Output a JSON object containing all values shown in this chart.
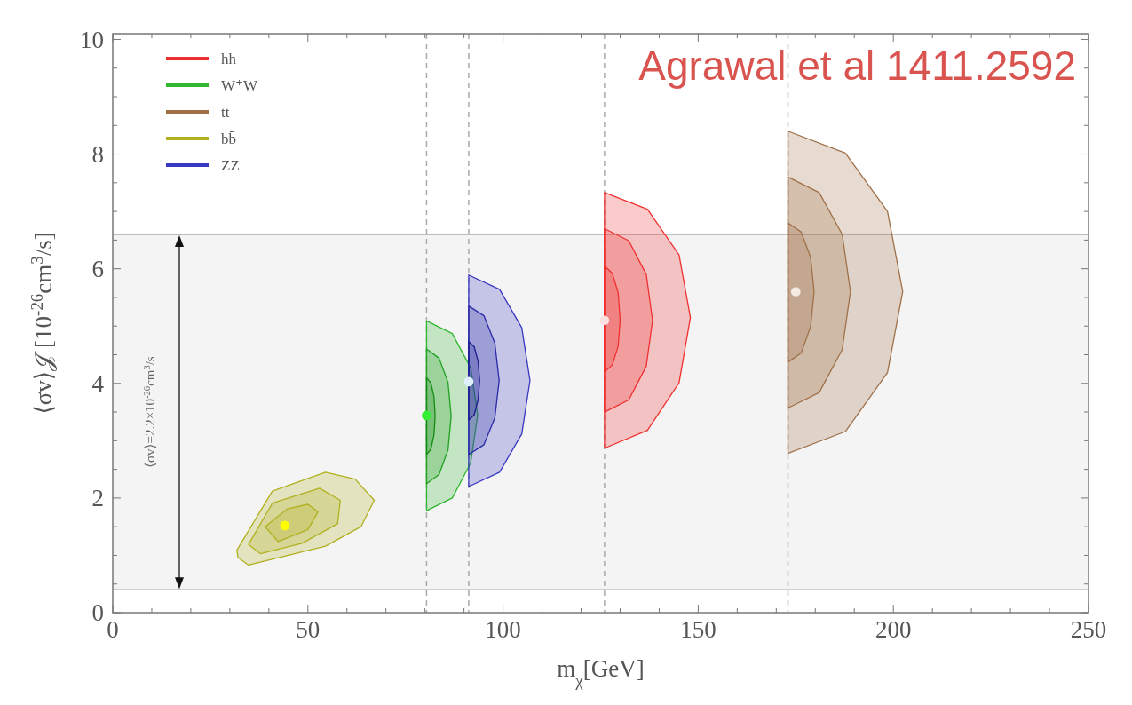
{
  "chart_data": {
    "type": "area",
    "xlabel": "m$_{χ}$[GeV]",
    "ylabel": "⟨σv⟩𝒥 [10$^{-26}$cm$^{3}$/s]",
    "annotations": [
      "Agrawal et al 1411.2592",
      "⟨σv⟩=2.2×10$^{-26}$cm$^{3}$/s"
    ],
    "xlim": [
      0,
      250
    ],
    "ylim": [
      0,
      10.1
    ],
    "xticks": [
      0,
      {
        "value": 10,
        "label": null
      },
      {
        "value": 20,
        "label": null
      },
      {
        "value": 30,
        "label": null
      },
      {
        "value": 40,
        "label": null
      },
      50,
      {
        "value": 60,
        "label": null
      },
      {
        "value": 70,
        "label": null
      },
      {
        "value": 80,
        "label": null
      },
      {
        "value": 90,
        "label": null
      },
      100,
      {
        "value": 110,
        "label": null
      },
      {
        "value": 120,
        "label": null
      },
      {
        "value": 130,
        "label": null
      },
      {
        "value": 140,
        "label": null
      },
      150,
      {
        "value": 160,
        "label": null
      },
      {
        "value": 170,
        "label": null
      },
      {
        "value": 180,
        "label": null
      },
      {
        "value": 190,
        "label": null
      },
      200,
      {
        "value": 210,
        "label": null
      },
      {
        "value": 220,
        "label": null
      },
      {
        "value": 230,
        "label": null
      },
      {
        "value": 240,
        "label": null
      },
      250
    ],
    "yticks": [
      0,
      {
        "value": 0.5,
        "label": null
      },
      {
        "value": 1,
        "label": null
      },
      {
        "value": 1.5,
        "label": null
      },
      2,
      {
        "value": 2.5,
        "label": null
      },
      {
        "value": 3,
        "label": null
      },
      {
        "value": 3.5,
        "label": null
      },
      4,
      {
        "value": 4.5,
        "label": null
      },
      {
        "value": 5,
        "label": null
      },
      {
        "value": 5.5,
        "label": null
      },
      6,
      {
        "value": 6.5,
        "label": null
      },
      {
        "value": 7,
        "label": null
      },
      {
        "value": 7.5,
        "label": null
      },
      8,
      {
        "value": 8.5,
        "label": null
      },
      {
        "value": 9,
        "label": null
      },
      {
        "value": 9.5,
        "label": null
      },
      10
    ],
    "legend": "top left",
    "bands": [
      {
        "axis": "y",
        "from": 0.4,
        "to": 6.6,
        "color": "#f4f4f4"
      }
    ],
    "ref_lines": [
      {
        "axis": "y",
        "value": 0.4,
        "color": "#aaaaaa"
      },
      {
        "axis": "y",
        "value": 6.6,
        "color": "#aaaaaa"
      },
      {
        "axis": "x",
        "value": 80.4,
        "color": "#aaaaaa",
        "line_style": "dashed"
      },
      {
        "axis": "x",
        "value": 91.2,
        "color": "#aaaaaa",
        "line_style": "dashed"
      },
      {
        "axis": "x",
        "value": 126,
        "color": "#aaaaaa",
        "line_style": "dashed"
      },
      {
        "axis": "x",
        "value": 173,
        "color": "#aaaaaa",
        "line_style": "dashed"
      }
    ],
    "series": [
      {
        "name": "hh",
        "color": "#f03030",
        "x": [
          126,
          137,
          145.1,
          148,
          145.1,
          137,
          126
        ],
        "values": [
          7.33,
          7.04,
          6.24,
          5.15,
          4.01,
          3.18,
          2.87
        ]
      },
      {
        "color": "#f03030",
        "x": [
          126,
          132.2,
          136.7,
          138.3,
          136.7,
          132.2,
          126
        ],
        "values": [
          6.7,
          6.49,
          5.9,
          5.1,
          4.3,
          3.71,
          3.5
        ]
      },
      {
        "color": "#f03030",
        "x": [
          126,
          128,
          129.5,
          130,
          129.5,
          128,
          126
        ],
        "values": [
          6.05,
          5.92,
          5.58,
          5.1,
          4.65,
          4.32,
          4.2
        ]
      },
      {
        "name": "W⁺W⁻",
        "color": "#30b830",
        "x": [
          80.4,
          87,
          91.7,
          93.5,
          91.7,
          87,
          80.4
        ],
        "values": [
          5.09,
          4.87,
          4.27,
          3.45,
          2.61,
          2.0,
          1.78
        ]
      },
      {
        "color": "#22a022",
        "x": [
          80.4,
          83.6,
          85.9,
          86.7,
          85.9,
          83.6,
          80.4
        ],
        "values": [
          4.6,
          4.44,
          4.02,
          3.43,
          2.84,
          2.41,
          2.25
        ]
      },
      {
        "color": "#148a14",
        "x": [
          80.4,
          81.5,
          82.3,
          82.6,
          82.3,
          81.5,
          80.4
        ],
        "values": [
          4.1,
          4.01,
          3.77,
          3.43,
          3.1,
          2.85,
          2.76
        ]
      },
      {
        "name": "tt̄",
        "color": "#a07048",
        "x": [
          173,
          187.7,
          198.5,
          202.4,
          198.5,
          187.7,
          173
        ],
        "values": [
          8.4,
          8.02,
          7.0,
          5.6,
          4.19,
          3.16,
          2.78
        ]
      },
      {
        "color": "#a07048",
        "x": [
          173,
          181,
          186.9,
          189,
          186.9,
          181,
          173
        ],
        "values": [
          7.6,
          7.33,
          6.6,
          5.6,
          4.59,
          3.84,
          3.57
        ]
      },
      {
        "color": "#a07048",
        "x": [
          173,
          176.4,
          178.8,
          179.7,
          178.8,
          176.4,
          173
        ],
        "values": [
          6.8,
          6.64,
          6.2,
          5.6,
          4.99,
          4.53,
          4.37
        ]
      },
      {
        "name": "bb̄",
        "color": "#b0b020",
        "x": [
          31.8,
          40.9,
          54.5,
          62.1,
          67.0,
          63.6,
          54.5,
          34.8,
          32.1
        ],
        "values": [
          1.09,
          2.12,
          2.45,
          2.33,
          1.96,
          1.5,
          1.16,
          0.83,
          0.96
        ]
      },
      {
        "color": "#b0b020",
        "x": [
          34.8,
          40.9,
          53.0,
          58.3,
          57.6,
          48.5,
          37.8
        ],
        "values": [
          1.19,
          1.91,
          2.17,
          1.96,
          1.55,
          1.21,
          1.03
        ]
      },
      {
        "color": "#b0b020",
        "x": [
          39.0,
          44.7,
          50.0,
          52.6,
          50.0,
          42.4
        ],
        "values": [
          1.5,
          1.81,
          1.89,
          1.76,
          1.45,
          1.24
        ]
      },
      {
        "name": "ZZ",
        "color": "#3838c0",
        "x": [
          91.2,
          99.1,
          104.8,
          106.9,
          104.8,
          99.1,
          91.2
        ],
        "values": [
          5.89,
          5.64,
          4.97,
          4.05,
          3.12,
          2.45,
          2.2
        ]
      },
      {
        "color": "#2a2aa8",
        "x": [
          91.2,
          95.1,
          97.9,
          99,
          97.9,
          95.1,
          91.2
        ],
        "values": [
          5.35,
          5.18,
          4.7,
          4.05,
          3.4,
          2.93,
          2.76
        ]
      },
      {
        "color": "#1c1c90",
        "x": [
          91.2,
          92.6,
          93.6,
          94,
          93.6,
          92.6,
          91.2
        ],
        "values": [
          4.73,
          4.64,
          4.39,
          4.05,
          3.71,
          3.45,
          3.36
        ]
      },
      {
        "type": "scatter",
        "marker": "circle",
        "x": [
          44.1,
          80.4,
          91.2,
          126,
          175
        ],
        "values": [
          1.52,
          3.44,
          4.03,
          5.1,
          5.6
        ],
        "colors": [
          "#ffff00",
          "#33ee33",
          "#e0f0ff",
          "#ffe0e0",
          "#f5ebe0"
        ]
      }
    ]
  }
}
